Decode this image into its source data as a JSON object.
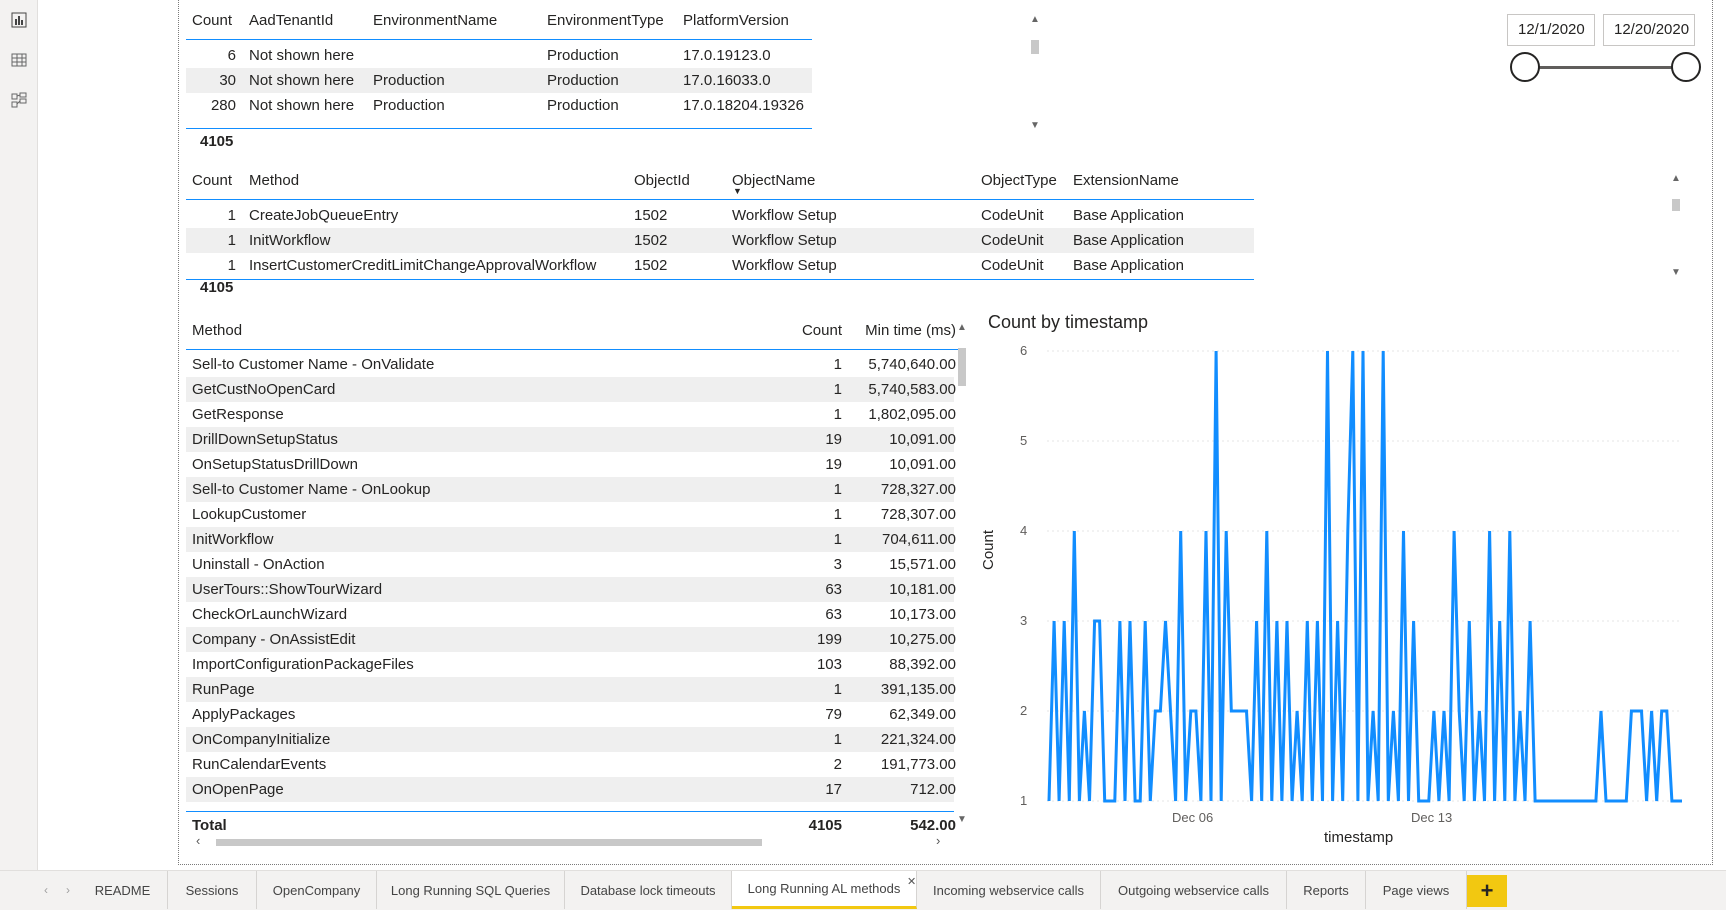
{
  "rail": {
    "icons": [
      "report-view-icon",
      "data-view-icon",
      "model-view-icon"
    ]
  },
  "date_slicer": {
    "start": "12/1/2020",
    "end": "12/20/2020"
  },
  "table1": {
    "headers": [
      "Count",
      "AadTenantId",
      "EnvironmentName",
      "EnvironmentType",
      "PlatformVersion"
    ],
    "rows": [
      [
        "6",
        "Not shown here",
        "",
        "Production",
        "17.0.19123.0"
      ],
      [
        "30",
        "Not shown here",
        "Production",
        "Production",
        "17.0.16033.0"
      ],
      [
        "280",
        "Not shown here",
        "Production",
        "Production",
        "17.0.18204.19326"
      ]
    ],
    "total": "4105"
  },
  "table2": {
    "headers": [
      "Count",
      "Method",
      "ObjectId",
      "ObjectName",
      "ObjectType",
      "ExtensionName"
    ],
    "rows": [
      [
        "1",
        "CreateJobQueueEntry",
        "1502",
        "Workflow Setup",
        "CodeUnit",
        "Base Application"
      ],
      [
        "1",
        "InitWorkflow",
        "1502",
        "Workflow Setup",
        "CodeUnit",
        "Base Application"
      ],
      [
        "1",
        "InsertCustomerCreditLimitChangeApprovalWorkflow",
        "1502",
        "Workflow Setup",
        "CodeUnit",
        "Base Application"
      ]
    ],
    "total": "4105"
  },
  "table3": {
    "headers": [
      "Method",
      "Count",
      "Min time (ms)"
    ],
    "rows": [
      [
        "Sell-to Customer Name - OnValidate",
        "1",
        "5,740,640.00"
      ],
      [
        "GetCustNoOpenCard",
        "1",
        "5,740,583.00"
      ],
      [
        "GetResponse",
        "1",
        "1,802,095.00"
      ],
      [
        "DrillDownSetupStatus",
        "19",
        "10,091.00"
      ],
      [
        "OnSetupStatusDrillDown",
        "19",
        "10,091.00"
      ],
      [
        "Sell-to Customer Name - OnLookup",
        "1",
        "728,327.00"
      ],
      [
        "LookupCustomer",
        "1",
        "728,307.00"
      ],
      [
        "InitWorkflow",
        "1",
        "704,611.00"
      ],
      [
        "Uninstall - OnAction",
        "3",
        "15,571.00"
      ],
      [
        "UserTours::ShowTourWizard",
        "63",
        "10,181.00"
      ],
      [
        "CheckOrLaunchWizard",
        "63",
        "10,173.00"
      ],
      [
        "Company - OnAssistEdit",
        "199",
        "10,275.00"
      ],
      [
        "ImportConfigurationPackageFiles",
        "103",
        "88,392.00"
      ],
      [
        "RunPage",
        "1",
        "391,135.00"
      ],
      [
        "ApplyPackages",
        "79",
        "62,349.00"
      ],
      [
        "OnCompanyInitialize",
        "1",
        "221,324.00"
      ],
      [
        "RunCalendarEvents",
        "2",
        "191,773.00"
      ],
      [
        "OnOpenPage",
        "17",
        "712.00"
      ]
    ],
    "total_label": "Total",
    "total_count": "4105",
    "total_min": "542.00"
  },
  "chart_data": {
    "type": "line",
    "title": "Count by timestamp",
    "xlabel": "timestamp",
    "ylabel": "Count",
    "y_ticks": [
      "1",
      "2",
      "3",
      "4",
      "5",
      "6"
    ],
    "x_ticks": [
      "Dec 06",
      "Dec 13"
    ],
    "ylim": [
      1,
      6
    ],
    "color": "#118dff",
    "series": [
      {
        "values": [
          1,
          3,
          1,
          3,
          1,
          4,
          1,
          2,
          1,
          3,
          3,
          1,
          1,
          1,
          3,
          1,
          3,
          1,
          1,
          3,
          1,
          2,
          2,
          3,
          2,
          1,
          4,
          1,
          2,
          2,
          1,
          4,
          1,
          6,
          1,
          4,
          2,
          2,
          2,
          2,
          1,
          3,
          1,
          4,
          1,
          3,
          1,
          3,
          1,
          2,
          1,
          3,
          1,
          3,
          1,
          6,
          1,
          3,
          1,
          4,
          6,
          1,
          6,
          1,
          2,
          1,
          6,
          1,
          2,
          1,
          4,
          1,
          3,
          1,
          1,
          1,
          2,
          1,
          2,
          1,
          4,
          2,
          1,
          3,
          1,
          2,
          1,
          4,
          1,
          3,
          1,
          4,
          1,
          2,
          1,
          3,
          1,
          1,
          1,
          1,
          1,
          1,
          1,
          1,
          1,
          1,
          1,
          1,
          1,
          2,
          1,
          1,
          1,
          1,
          1,
          2,
          2,
          2,
          1,
          2,
          1,
          2,
          2,
          1,
          1,
          1
        ]
      }
    ]
  },
  "tabs": [
    {
      "label": "README"
    },
    {
      "label": "Sessions"
    },
    {
      "label": "OpenCompany"
    },
    {
      "label": "Long Running SQL Queries"
    },
    {
      "label": "Database lock timeouts"
    },
    {
      "label": "Long Running AL methods"
    },
    {
      "label": "Incoming webservice calls"
    },
    {
      "label": "Outgoing webservice calls"
    },
    {
      "label": "Reports"
    },
    {
      "label": "Page views"
    }
  ],
  "add_tab": "+"
}
